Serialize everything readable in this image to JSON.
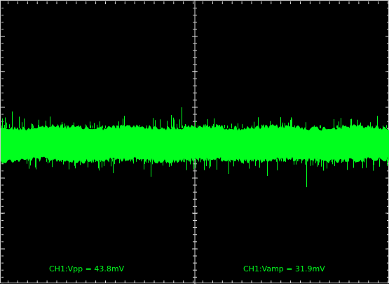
{
  "colors": {
    "background": "#000000",
    "grid": "#d8d8d8",
    "trace": "#00ff1e",
    "readout_text": "#00ff1e"
  },
  "grid": {
    "horizontal_divisions": 2,
    "vertical_divisions": 8
  },
  "trace": {
    "channel": "CH1",
    "style": "dense noise band"
  },
  "measurements": {
    "vpp_text": "CH1:Vpp = 43.8mV",
    "vamp_text": "CH1:Vamp = 31.9mV"
  }
}
